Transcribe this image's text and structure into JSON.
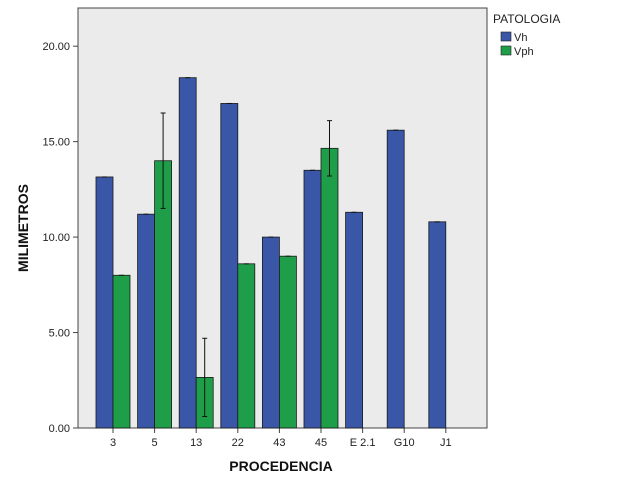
{
  "chart_data": {
    "type": "bar",
    "title": "",
    "xlabel": "PROCEDENCIA",
    "ylabel": "MILIMETROS",
    "ylim": [
      0,
      22
    ],
    "yticks": [
      0,
      5,
      10,
      15,
      20
    ],
    "ytick_labels": [
      "0.00",
      "5.00",
      "10.00",
      "15.00",
      "20.00"
    ],
    "categories": [
      "3",
      "5",
      "13",
      "22",
      "43",
      "45",
      "E 2.1",
      "G10",
      "J1"
    ],
    "series": [
      {
        "name": "Vh",
        "color": "#3a56a6",
        "values": [
          13.15,
          11.2,
          18.35,
          17.0,
          10.0,
          13.5,
          11.3,
          15.6,
          10.8
        ],
        "error": [
          0,
          0,
          0,
          0,
          0,
          0,
          0,
          0,
          0
        ]
      },
      {
        "name": "Vph",
        "color": "#1f9e49",
        "values": [
          8.0,
          14.0,
          2.65,
          8.6,
          9.0,
          14.65,
          null,
          null,
          null
        ],
        "error": [
          0,
          2.5,
          2.05,
          0,
          0,
          1.45,
          null,
          null,
          null
        ]
      }
    ],
    "legend": {
      "title": "PATOLOGIA",
      "position": "top-right"
    },
    "grid": false,
    "plot_background": "#ebebeb"
  }
}
